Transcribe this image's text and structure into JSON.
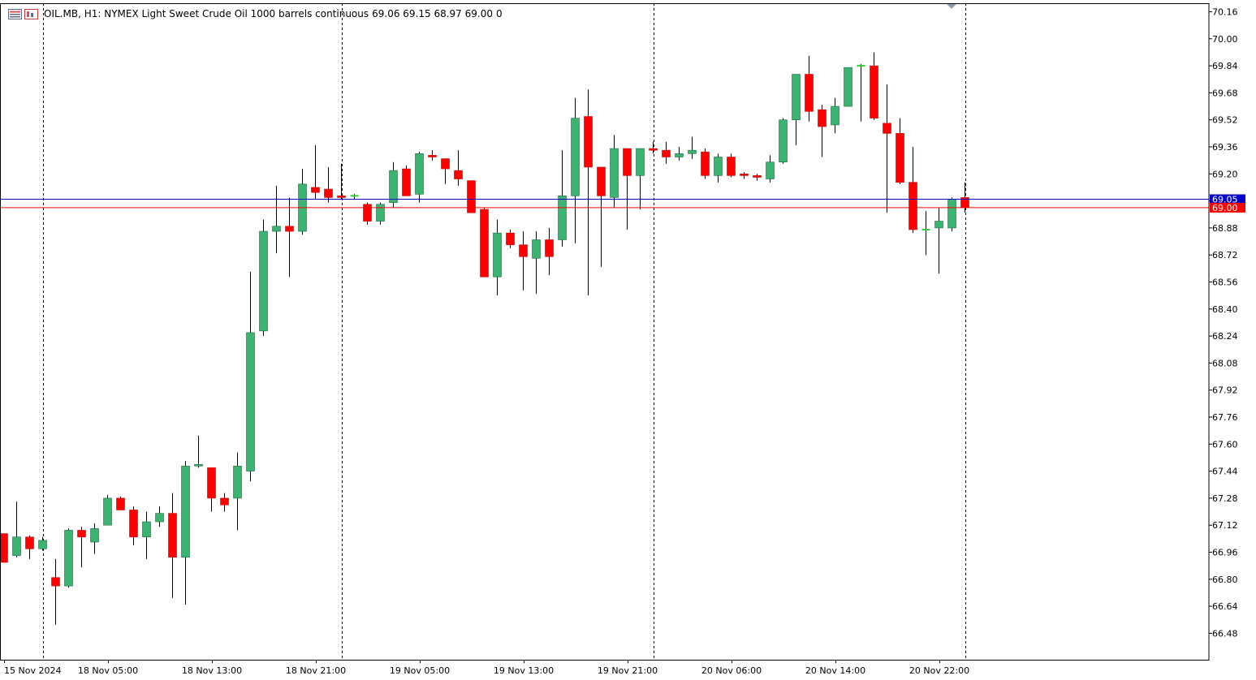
{
  "header": {
    "symbol_info": "OIL.MB, H1:  NYMEX Light Sweet Crude Oil 1000 barrels continuous",
    "ohlc": "69.06 69.15 68.97 69.00",
    "volume": "0"
  },
  "colors": {
    "bull_fill": "#3cb371",
    "bear_fill": "#ff0000",
    "wick": "#000000",
    "bid_line": "#0000cd",
    "ask_line": "#ff0000",
    "grid": "#000000",
    "doji_green": "#32cd32"
  },
  "price_tags": {
    "bid": "69.05",
    "ask": "69.00"
  },
  "chart_data": {
    "type": "candlestick",
    "timeframe": "H1",
    "ylim": [
      66.36,
      70.2
    ],
    "y_ticks": [
      "70.16",
      "70.00",
      "69.84",
      "69.68",
      "69.52",
      "69.36",
      "69.20",
      "69.04",
      "68.88",
      "68.72",
      "68.56",
      "68.40",
      "68.24",
      "68.08",
      "67.92",
      "67.76",
      "67.60",
      "67.44",
      "67.28",
      "67.12",
      "66.96",
      "66.80",
      "66.64",
      "66.48"
    ],
    "x_ticks": [
      {
        "label": "15 Nov 2024",
        "index": 0
      },
      {
        "label": "18 Nov 05:00",
        "index": 8
      },
      {
        "label": "18 Nov 13:00",
        "index": 16
      },
      {
        "label": "18 Nov 21:00",
        "index": 24
      },
      {
        "label": "19 Nov 05:00",
        "index": 32
      },
      {
        "label": "19 Nov 13:00",
        "index": 40
      },
      {
        "label": "19 Nov 21:00",
        "index": 48
      },
      {
        "label": "20 Nov 06:00",
        "index": 56
      },
      {
        "label": "20 Nov 14:00",
        "index": 64
      },
      {
        "label": "20 Nov 22:00",
        "index": 72
      }
    ],
    "day_separators": [
      3,
      26,
      50,
      74
    ],
    "current_bid": 69.05,
    "current_ask": 69.0,
    "candles": [
      [
        67.07,
        67.07,
        66.9,
        66.9
      ],
      [
        66.94,
        67.26,
        66.93,
        67.05
      ],
      [
        67.05,
        67.06,
        66.92,
        66.98
      ],
      [
        66.98,
        67.05,
        66.97,
        67.03
      ],
      [
        66.81,
        66.92,
        66.53,
        66.76
      ],
      [
        66.76,
        67.1,
        66.75,
        67.09
      ],
      [
        67.09,
        67.11,
        66.87,
        67.05
      ],
      [
        67.02,
        67.13,
        66.95,
        67.1
      ],
      [
        67.12,
        67.3,
        67.12,
        67.28
      ],
      [
        67.28,
        67.29,
        67.21,
        67.21
      ],
      [
        67.21,
        67.23,
        67.0,
        67.05
      ],
      [
        67.05,
        67.2,
        66.92,
        67.14
      ],
      [
        67.14,
        67.23,
        67.11,
        67.19
      ],
      [
        67.19,
        67.31,
        66.69,
        66.93
      ],
      [
        66.93,
        67.5,
        66.65,
        67.47
      ],
      [
        67.47,
        67.65,
        67.46,
        67.48
      ],
      [
        67.46,
        67.46,
        67.2,
        67.28
      ],
      [
        67.28,
        67.31,
        67.2,
        67.24
      ],
      [
        67.28,
        67.55,
        67.09,
        67.47
      ],
      [
        67.44,
        68.62,
        67.38,
        68.26
      ],
      [
        68.27,
        68.93,
        68.24,
        68.86
      ],
      [
        68.86,
        69.13,
        68.73,
        68.89
      ],
      [
        68.89,
        69.06,
        68.59,
        68.86
      ],
      [
        68.86,
        69.23,
        68.84,
        69.14
      ],
      [
        69.12,
        69.37,
        69.05,
        69.09
      ],
      [
        69.11,
        69.24,
        69.03,
        69.06
      ],
      [
        69.07,
        69.26,
        69.05,
        69.06
      ],
      [
        69.07,
        69.08,
        69.05,
        69.07
      ],
      [
        69.02,
        69.03,
        68.9,
        68.92
      ],
      [
        68.92,
        69.03,
        68.9,
        69.02
      ],
      [
        69.03,
        69.27,
        69.0,
        69.22
      ],
      [
        69.23,
        69.25,
        69.07,
        69.07
      ],
      [
        69.08,
        69.33,
        69.03,
        69.32
      ],
      [
        69.31,
        69.34,
        69.28,
        69.3
      ],
      [
        69.29,
        69.29,
        69.14,
        69.23
      ],
      [
        69.22,
        69.34,
        69.13,
        69.17
      ],
      [
        69.16,
        69.16,
        68.97,
        68.97
      ],
      [
        68.99,
        69.0,
        68.59,
        68.59
      ],
      [
        68.59,
        68.93,
        68.48,
        68.85
      ],
      [
        68.85,
        68.87,
        68.76,
        68.78
      ],
      [
        68.78,
        68.86,
        68.51,
        68.71
      ],
      [
        68.7,
        68.86,
        68.49,
        68.81
      ],
      [
        68.81,
        68.88,
        68.6,
        68.71
      ],
      [
        68.81,
        69.34,
        68.77,
        69.07
      ],
      [
        69.07,
        69.65,
        68.79,
        69.53
      ],
      [
        69.54,
        69.7,
        68.48,
        69.24
      ],
      [
        69.24,
        69.24,
        68.65,
        69.07
      ],
      [
        69.06,
        69.43,
        69.0,
        69.35
      ],
      [
        69.35,
        69.35,
        68.87,
        69.19
      ],
      [
        69.19,
        69.35,
        68.99,
        69.35
      ],
      [
        69.35,
        69.39,
        69.32,
        69.34
      ],
      [
        69.34,
        69.39,
        69.26,
        69.3
      ],
      [
        69.3,
        69.36,
        69.28,
        69.32
      ],
      [
        69.32,
        69.42,
        69.29,
        69.34
      ],
      [
        69.33,
        69.35,
        69.17,
        69.19
      ],
      [
        69.19,
        69.32,
        69.15,
        69.3
      ],
      [
        69.3,
        69.32,
        69.18,
        69.19
      ],
      [
        69.2,
        69.21,
        69.17,
        69.19
      ],
      [
        69.19,
        69.2,
        69.16,
        69.18
      ],
      [
        69.17,
        69.31,
        69.15,
        69.27
      ],
      [
        69.27,
        69.53,
        69.26,
        69.52
      ],
      [
        69.52,
        69.78,
        69.37,
        69.79
      ],
      [
        69.79,
        69.9,
        69.51,
        69.57
      ],
      [
        69.58,
        69.61,
        69.3,
        69.48
      ],
      [
        69.49,
        69.65,
        69.44,
        69.6
      ],
      [
        69.6,
        69.83,
        69.6,
        69.83
      ],
      [
        69.84,
        69.85,
        69.51,
        69.84
      ],
      [
        69.84,
        69.92,
        69.52,
        69.53
      ],
      [
        69.5,
        69.73,
        68.97,
        69.44
      ],
      [
        69.44,
        69.53,
        69.14,
        69.15
      ],
      [
        69.15,
        69.36,
        68.85,
        68.87
      ],
      [
        68.87,
        68.98,
        68.72,
        68.87
      ],
      [
        68.88,
        69.0,
        68.61,
        68.92
      ],
      [
        68.88,
        69.06,
        68.86,
        69.05
      ],
      [
        69.06,
        69.15,
        68.97,
        69.0
      ]
    ]
  }
}
